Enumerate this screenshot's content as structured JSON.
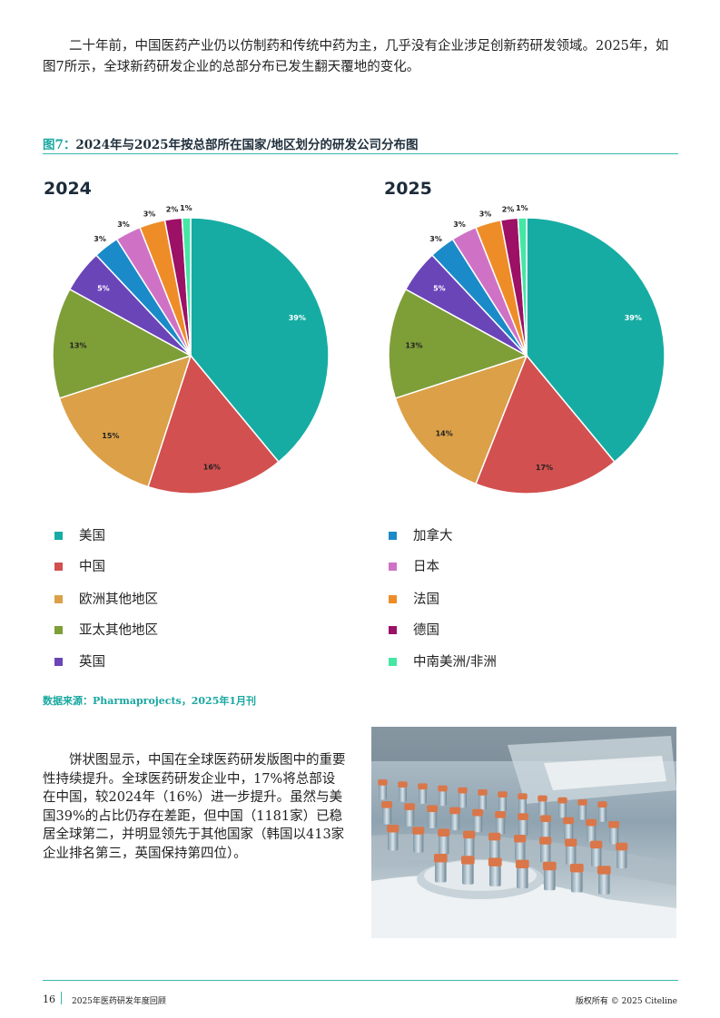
{
  "intro_text": "二十年前，中国医药产业仍以仿制药和传统中药为主，几乎没有企业涉足创新药研发领域。2025年，如图7所示，全球新药研发企业的总部分布已发生翻天覆地的变化。",
  "figure": {
    "title_prefix": "图7：",
    "title": "2024年与2025年按总部所在国家/地区划分的研发公司分布图",
    "source": "数据来源：Pharmaprojects，2025年1月刊"
  },
  "chart_data": [
    {
      "type": "pie",
      "title": "2024",
      "categories": [
        "美国",
        "中国",
        "欧洲其他地区",
        "亚太其他地区",
        "英国",
        "加拿大",
        "日本",
        "法国",
        "德国",
        "中南美洲/非洲"
      ],
      "values": [
        39,
        16,
        15,
        13,
        5,
        3,
        3,
        3,
        2,
        1
      ],
      "labels": [
        "39%",
        "16%",
        "15%",
        "13%",
        "5%",
        "3%",
        "3%",
        "3%",
        "2%",
        "1%"
      ],
      "colors": [
        "#16aca3",
        "#d2504f",
        "#dba048",
        "#7e9e38",
        "#6a45b8",
        "#1b8ac8",
        "#cf72c6",
        "#ee8d28",
        "#9c1066",
        "#46e6a4"
      ],
      "legend_position": "bottom"
    },
    {
      "type": "pie",
      "title": "2025",
      "categories": [
        "美国",
        "中国",
        "欧洲其他地区",
        "亚太其他地区",
        "英国",
        "加拿大",
        "日本",
        "法国",
        "德国",
        "中南美洲/非洲"
      ],
      "values": [
        39,
        17,
        14,
        13,
        5,
        3,
        3,
        3,
        2,
        1
      ],
      "labels": [
        "39%",
        "17%",
        "14%",
        "13%",
        "5%",
        "3%",
        "3%",
        "3%",
        "2%",
        "1%"
      ],
      "colors": [
        "#16aca3",
        "#d2504f",
        "#dba048",
        "#7e9e38",
        "#6a45b8",
        "#1b8ac8",
        "#cf72c6",
        "#ee8d28",
        "#9c1066",
        "#46e6a4"
      ],
      "legend_position": "bottom"
    }
  ],
  "legend": {
    "items": [
      {
        "label": "美国",
        "color": "#16aca3"
      },
      {
        "label": "中国",
        "color": "#d2504f"
      },
      {
        "label": "欧洲其他地区",
        "color": "#dba048"
      },
      {
        "label": "亚太其他地区",
        "color": "#7e9e38"
      },
      {
        "label": "英国",
        "color": "#6a45b8"
      },
      {
        "label": "加拿大",
        "color": "#1b8ac8"
      },
      {
        "label": "日本",
        "color": "#cf72c6"
      },
      {
        "label": "法国",
        "color": "#ee8d28"
      },
      {
        "label": "德国",
        "color": "#9c1066"
      },
      {
        "label": "中南美洲/非洲",
        "color": "#46e6a4"
      }
    ]
  },
  "body_text": "饼状图显示，中国在全球医药研发版图中的重要性持续提升。全球医药研发企业中，17%将总部设在中国，较2024年（16%）进一步提升。虽然与美国39%的占比仍存在差距，但中国（1181家）已稳居全球第二，并明显领先于其他国家（韩国以413家企业排名第三，英国保持第四位）。",
  "footer": {
    "page_number": "16",
    "publication": "2025年医药研发年度回顾",
    "copyright": "版权所有 © 2025 Citeline"
  }
}
